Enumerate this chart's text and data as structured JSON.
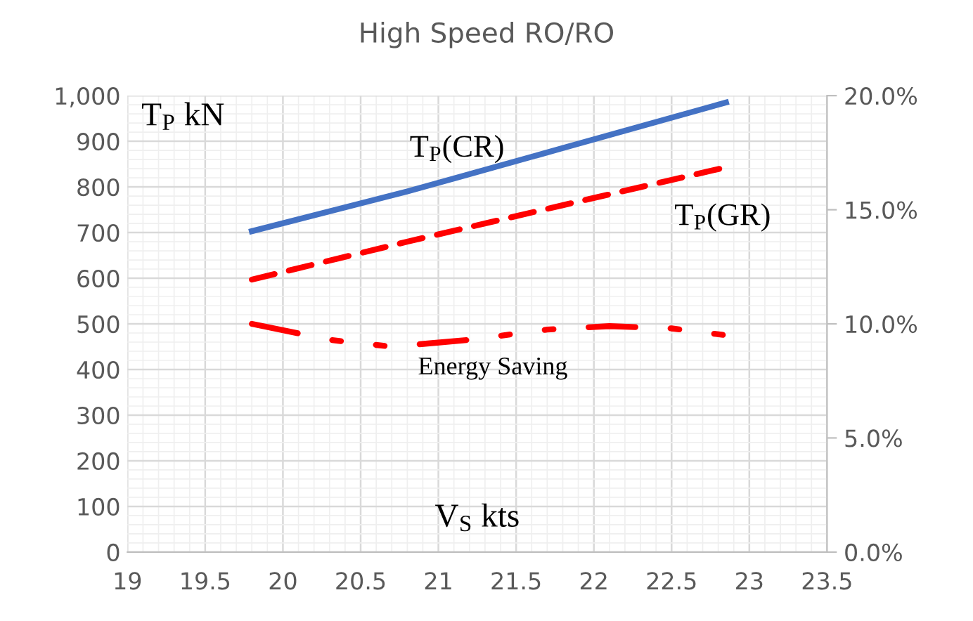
{
  "chart_data": {
    "type": "line",
    "title": "High Speed RO/RO",
    "xlabel": "V$_{S}$ kts",
    "ylabel": "T$_{P}$ kN",
    "xlim": [
      19,
      23.5
    ],
    "xticks": [
      19,
      19.5,
      20,
      20.5,
      21,
      21.5,
      22,
      22.5,
      23,
      23.5
    ],
    "ylim": [
      0,
      1000
    ],
    "yticks": [
      0,
      100,
      200,
      300,
      400,
      500,
      600,
      700,
      800,
      900,
      {
        "value": 1000,
        "label": "1,000"
      }
    ],
    "y2lim": [
      0,
      20
    ],
    "y2ticks": [
      {
        "value": 0,
        "label": "0.0%"
      },
      {
        "value": 5,
        "label": "5.0%"
      },
      {
        "value": 10,
        "label": "10.0%"
      },
      {
        "value": 15,
        "label": "15.0%"
      },
      {
        "value": 20,
        "label": "20.0%"
      }
    ],
    "grid": true,
    "legend": false,
    "series": [
      {
        "name": "T$_{P}$(CR)",
        "color": "#4472c4",
        "line_style": "solid",
        "x": [
          19.8,
          20.8,
          21.8,
          22.85
        ],
        "values": [
          703,
          790,
          885,
          985
        ]
      },
      {
        "name": "T$_{P}$(GR)",
        "color": "#ff0000",
        "line_style": "dashed",
        "x": [
          19.8,
          20.8,
          21.8,
          22.85
        ],
        "values": [
          597,
          680,
          760,
          843
        ]
      },
      {
        "name": "Energy Saving",
        "color": "#ff0000",
        "line_style": "dashdot",
        "axis": "y2",
        "x": [
          19.8,
          20.3,
          20.7,
          21.2,
          21.7,
          22.1,
          22.5,
          22.85
        ],
        "values": [
          10.0,
          9.3,
          9.0,
          9.3,
          9.75,
          9.9,
          9.8,
          9.5
        ]
      }
    ]
  }
}
